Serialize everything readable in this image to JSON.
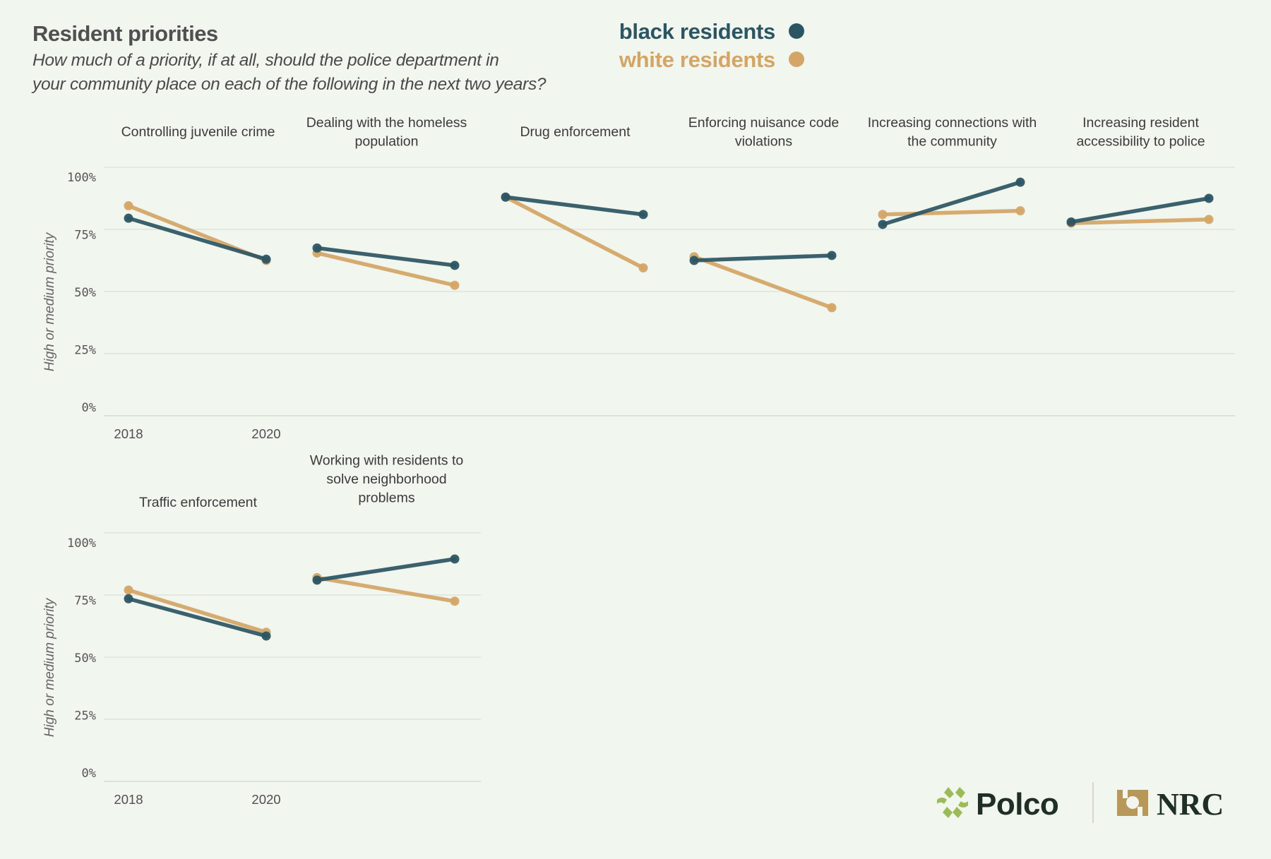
{
  "header": {
    "title": "Resident priorities",
    "subtitle_lines": [
      "How much of a priority, if at all, should the police department in",
      "your community place on each of the following in the next two years?"
    ]
  },
  "legend": [
    {
      "label": "black residents",
      "color": "#2c5563"
    },
    {
      "label": "white residents",
      "color": "#d4a566"
    }
  ],
  "logos": {
    "polco": "Polco",
    "nrc": "NRC",
    "polco_color": "#9bbb59",
    "nrc_color": "#b8975a"
  },
  "chart_data": {
    "type": "line",
    "title": "Resident priorities",
    "subtitle": "How much of a priority, if at all, should the police department in your community place on each of the following in the next two years?",
    "ylabel": "High or medium priority",
    "xlabel": "",
    "x": [
      "2018",
      "2020"
    ],
    "ylim": [
      0,
      100
    ],
    "yticks": [
      "100%",
      "75%",
      "50%",
      "25%",
      "0%"
    ],
    "ytick_values": [
      100,
      75,
      50,
      25,
      0
    ],
    "grid": true,
    "legend_position": "top-right",
    "series_names": [
      "black residents",
      "white residents"
    ],
    "panels": [
      {
        "title_lines": [
          "Controlling juvenile crime"
        ],
        "black": [
          79.5,
          63
        ],
        "white": [
          84.5,
          62.5
        ]
      },
      {
        "title_lines": [
          "Dealing with the homeless",
          "population"
        ],
        "black": [
          67.5,
          60.5
        ],
        "white": [
          65.5,
          52.5
        ]
      },
      {
        "title_lines": [
          "Drug enforcement"
        ],
        "black": [
          88,
          81
        ],
        "white": [
          88,
          59.5
        ]
      },
      {
        "title_lines": [
          "Enforcing nuisance code",
          "violations"
        ],
        "black": [
          62.5,
          64.5
        ],
        "white": [
          64,
          43.5
        ]
      },
      {
        "title_lines": [
          "Increasing connections with",
          "the community"
        ],
        "black": [
          77,
          94
        ],
        "white": [
          81,
          82.5
        ]
      },
      {
        "title_lines": [
          "Increasing resident",
          "accessibility to police"
        ],
        "black": [
          78,
          87.5
        ],
        "white": [
          77.5,
          79
        ]
      },
      {
        "title_lines": [
          "Traffic enforcement"
        ],
        "black": [
          73.5,
          58.5
        ],
        "white": [
          77,
          60
        ]
      },
      {
        "title_lines": [
          "Working with residents to",
          "solve neighborhood",
          "problems"
        ],
        "black": [
          81,
          89.5
        ],
        "white": [
          82,
          72.5
        ]
      }
    ]
  }
}
